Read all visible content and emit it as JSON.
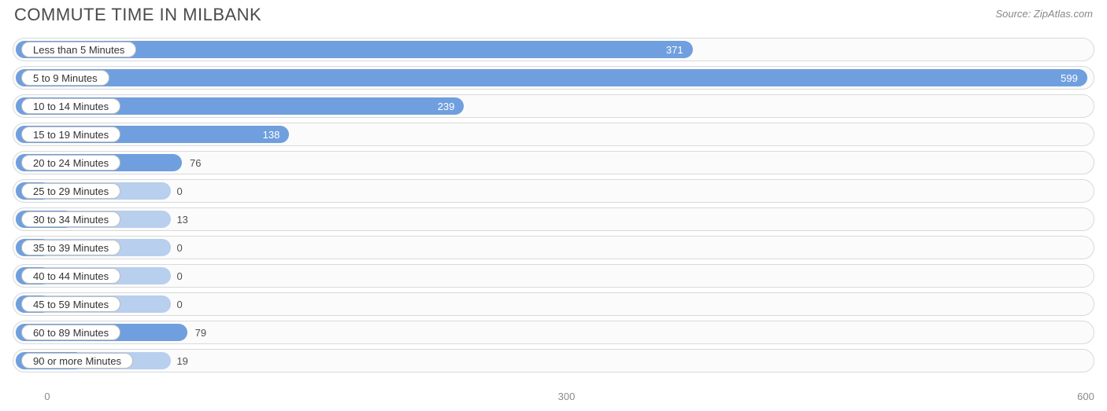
{
  "header": {
    "title": "COMMUTE TIME IN MILBANK",
    "source": "Source: ZipAtlas.com"
  },
  "chart": {
    "type": "bar-horizontal",
    "bar_color": "#6f9fde",
    "bar_light_color": "#b8cfee",
    "row_border_color": "#d9d9d9",
    "row_background": "#fbfbfb",
    "pill_background": "#ffffff",
    "pill_border_color": "#bdbdbd",
    "value_color_inside": "#ffffff",
    "value_color_outside": "#505050",
    "label_fontsize": 13,
    "value_fontsize": 13,
    "title_fontsize": 22,
    "title_color": "#4a4a4a",
    "source_color": "#888888",
    "xmin": -20,
    "xmax": 605,
    "label_end_value": 68,
    "rows": [
      {
        "label": "Less than 5 Minutes",
        "value": 371
      },
      {
        "label": "5 to 9 Minutes",
        "value": 599
      },
      {
        "label": "10 to 14 Minutes",
        "value": 239
      },
      {
        "label": "15 to 19 Minutes",
        "value": 138
      },
      {
        "label": "20 to 24 Minutes",
        "value": 76
      },
      {
        "label": "25 to 29 Minutes",
        "value": 0
      },
      {
        "label": "30 to 34 Minutes",
        "value": 13
      },
      {
        "label": "35 to 39 Minutes",
        "value": 0
      },
      {
        "label": "40 to 44 Minutes",
        "value": 0
      },
      {
        "label": "45 to 59 Minutes",
        "value": 0
      },
      {
        "label": "60 to 89 Minutes",
        "value": 79
      },
      {
        "label": "90 or more Minutes",
        "value": 19
      }
    ],
    "axis_ticks": [
      0,
      300,
      600
    ],
    "axis_color": "#8a8a8a"
  }
}
